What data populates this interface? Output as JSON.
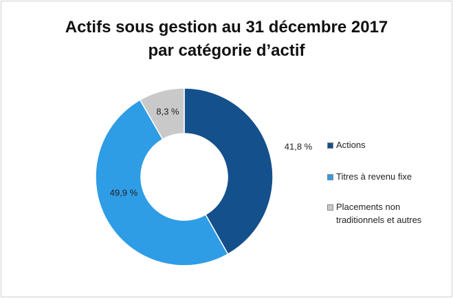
{
  "chart_data": {
    "type": "donut",
    "title": [
      "Actifs sous gestion au 31 décembre 2017",
      "par catégorie d’actif"
    ],
    "categories": [
      "Actions",
      "Titres à revenu fixe",
      "Placements non traditionnels et autres"
    ],
    "values": [
      41.8,
      49.9,
      8.3
    ],
    "value_labels": [
      "41,8 %",
      "49,9 %",
      "8,3 %"
    ],
    "colors": [
      "#14508c",
      "#2f9de6",
      "#c9c9c9"
    ],
    "legend": "right"
  }
}
